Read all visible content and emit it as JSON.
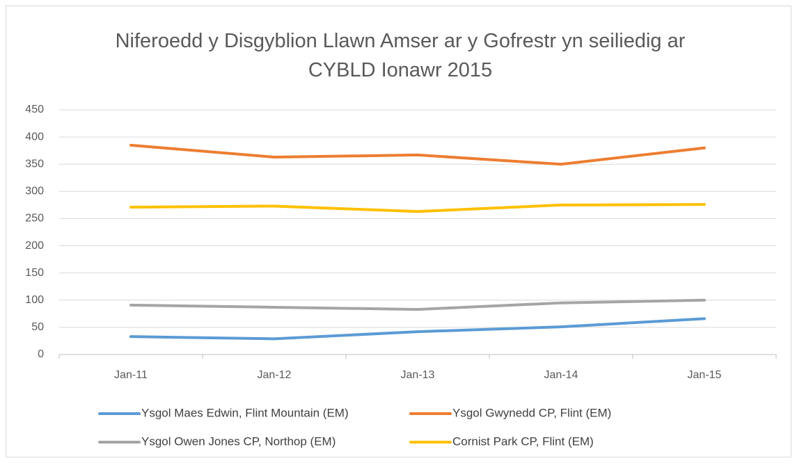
{
  "chart_data": {
    "type": "line",
    "title": "Niferoedd y Disgyblion Llawn Amser ar y Gofrestr yn seiliedig ar CYBLD Ionawr 2015",
    "categories": [
      "Jan-11",
      "Jan-12",
      "Jan-13",
      "Jan-14",
      "Jan-15"
    ],
    "series": [
      {
        "name": "Ysgol Maes Edwin, Flint Mountain (EM)",
        "color": "#5b9bd5",
        "values": [
          33,
          29,
          42,
          51,
          66
        ]
      },
      {
        "name": "Ysgol Gwynedd CP, Flint (EM)",
        "color": "#ed7d31",
        "values": [
          385,
          363,
          367,
          350,
          380
        ]
      },
      {
        "name": "Ysgol Owen Jones CP, Northop (EM)",
        "color": "#a5a5a5",
        "values": [
          91,
          87,
          83,
          95,
          100
        ]
      },
      {
        "name": "Cornist Park CP, Flint (EM)",
        "color": "#ffc000",
        "values": [
          271,
          273,
          263,
          275,
          276
        ]
      }
    ],
    "ylim": [
      0,
      450
    ],
    "yticks": [
      0,
      50,
      100,
      150,
      200,
      250,
      300,
      350,
      400,
      450
    ],
    "grid": true
  }
}
